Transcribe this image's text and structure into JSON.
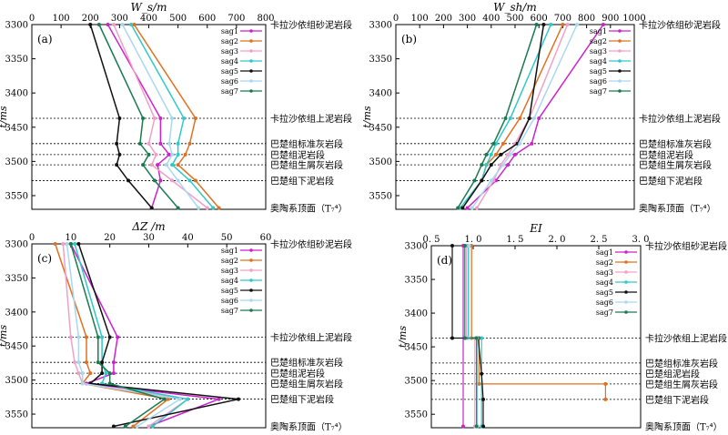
{
  "strata_common": {
    "labels": [
      "卡拉沙依组砂泥岩段",
      "卡拉沙依组上泥岩段",
      "巴楚组标准灰岩段",
      "巴楚组泥岩段",
      "巴楚组生屑灰岩段",
      "巴楚组下泥岩段",
      "奥陶系顶面（T₇⁴）"
    ],
    "depths": [
      3300,
      3437,
      3474,
      3490,
      3505,
      3528,
      3568
    ]
  },
  "series_colors": {
    "sag1": "#cc22cc",
    "sag2": "#e07020",
    "sag3": "#f0a0c8",
    "sag4": "#30c8c8",
    "sag5": "#111111",
    "sag6": "#a8d8f0",
    "sag7": "#1a7a50"
  },
  "chart_data": [
    {
      "id": "a",
      "type": "line",
      "panel_label": "(a)",
      "title": "W_s/m",
      "ylabel": "t/ms",
      "xlim": [
        0,
        800
      ],
      "x_ticks": [
        0,
        100,
        200,
        300,
        400,
        500,
        600,
        700,
        800
      ],
      "ylim": [
        3300,
        3570
      ],
      "y_ticks": [
        3300,
        3350,
        3400,
        3450,
        3500,
        3550
      ],
      "y_tick_labels": [
        "3300",
        "3350",
        "3400",
        "3450",
        "3500",
        "3550"
      ],
      "legend": [
        "sag1",
        "sag2",
        "sag3",
        "sag4",
        "sag5",
        "sag6",
        "sag7"
      ],
      "legend_position": "top-right",
      "dotted_lines": [
        3437,
        3474,
        3490,
        3505,
        3528
      ],
      "series": [
        {
          "name": "sag1",
          "points": [
            [
              260,
              3300
            ],
            [
              440,
              3437
            ],
            [
              440,
              3474
            ],
            [
              470,
              3490
            ],
            [
              430,
              3505
            ],
            [
              440,
              3528
            ],
            [
              410,
              3568
            ]
          ]
        },
        {
          "name": "sag2",
          "points": [
            [
              350,
              3300
            ],
            [
              560,
              3437
            ],
            [
              540,
              3474
            ],
            [
              525,
              3490
            ],
            [
              500,
              3505
            ],
            [
              560,
              3528
            ],
            [
              640,
              3568
            ]
          ]
        },
        {
          "name": "sag3",
          "points": [
            [
              280,
              3300
            ],
            [
              420,
              3437
            ],
            [
              400,
              3474
            ],
            [
              425,
              3490
            ],
            [
              410,
              3505
            ],
            [
              480,
              3528
            ],
            [
              600,
              3568
            ]
          ]
        },
        {
          "name": "sag4",
          "points": [
            [
              340,
              3300
            ],
            [
              520,
              3437
            ],
            [
              500,
              3474
            ],
            [
              500,
              3490
            ],
            [
              480,
              3505
            ],
            [
              540,
              3528
            ],
            [
              620,
              3568
            ]
          ]
        },
        {
          "name": "sag5",
          "points": [
            [
              200,
              3300
            ],
            [
              300,
              3437
            ],
            [
              290,
              3474
            ],
            [
              300,
              3490
            ],
            [
              290,
              3505
            ],
            [
              330,
              3528
            ],
            [
              410,
              3568
            ]
          ]
        },
        {
          "name": "sag6",
          "points": [
            [
              310,
              3300
            ],
            [
              480,
              3437
            ],
            [
              470,
              3474
            ],
            [
              480,
              3490
            ],
            [
              460,
              3505
            ],
            [
              500,
              3528
            ],
            [
              570,
              3568
            ]
          ]
        },
        {
          "name": "sag7",
          "points": [
            [
              230,
              3300
            ],
            [
              380,
              3437
            ],
            [
              370,
              3474
            ],
            [
              400,
              3490
            ],
            [
              380,
              3505
            ],
            [
              420,
              3528
            ],
            [
              500,
              3568
            ]
          ]
        }
      ]
    },
    {
      "id": "b",
      "type": "line",
      "panel_label": "(b)",
      "title": "W_sh/m",
      "ylabel": "t/ms",
      "xlim": [
        0,
        1000
      ],
      "x_ticks": [
        0,
        100,
        200,
        300,
        400,
        500,
        600,
        700,
        800,
        900,
        1000
      ],
      "ylim": [
        3300,
        3570
      ],
      "y_ticks": [
        3300,
        3350,
        3400,
        3450,
        3500,
        3550
      ],
      "y_tick_labels": [
        "3300",
        "3350",
        "3400",
        "3450",
        "3500",
        "3550"
      ],
      "legend": [
        "sag1",
        "sag2",
        "sag3",
        "sag4",
        "sag5",
        "sag6",
        "sag7"
      ],
      "legend_position": "top-right",
      "dotted_lines": [
        3437,
        3474,
        3490,
        3505,
        3528
      ],
      "series": [
        {
          "name": "sag1",
          "points": [
            [
              870,
              3300
            ],
            [
              600,
              3437
            ],
            [
              570,
              3474
            ],
            [
              500,
              3490
            ],
            [
              470,
              3505
            ],
            [
              420,
              3528
            ],
            [
              300,
              3568
            ]
          ]
        },
        {
          "name": "sag2",
          "points": [
            [
              700,
              3300
            ],
            [
              520,
              3437
            ],
            [
              450,
              3474
            ],
            [
              420,
              3490
            ],
            [
              380,
              3505
            ],
            [
              360,
              3528
            ],
            [
              280,
              3568
            ]
          ]
        },
        {
          "name": "sag3",
          "points": [
            [
              720,
              3300
            ],
            [
              560,
              3437
            ],
            [
              500,
              3474
            ],
            [
              470,
              3490
            ],
            [
              440,
              3505
            ],
            [
              410,
              3528
            ],
            [
              340,
              3568
            ]
          ]
        },
        {
          "name": "sag4",
          "points": [
            [
              650,
              3300
            ],
            [
              480,
              3437
            ],
            [
              420,
              3474
            ],
            [
              400,
              3490
            ],
            [
              380,
              3505
            ],
            [
              360,
              3528
            ],
            [
              270,
              3568
            ]
          ]
        },
        {
          "name": "sag5",
          "points": [
            [
              620,
              3300
            ],
            [
              560,
              3437
            ],
            [
              510,
              3474
            ],
            [
              440,
              3490
            ],
            [
              400,
              3505
            ],
            [
              360,
              3528
            ],
            [
              280,
              3568
            ]
          ]
        },
        {
          "name": "sag6",
          "points": [
            [
              760,
              3300
            ],
            [
              580,
              3437
            ],
            [
              520,
              3474
            ],
            [
              480,
              3490
            ],
            [
              450,
              3505
            ],
            [
              400,
              3528
            ],
            [
              320,
              3568
            ]
          ]
        },
        {
          "name": "sag7",
          "points": [
            [
              590,
              3300
            ],
            [
              460,
              3437
            ],
            [
              410,
              3474
            ],
            [
              380,
              3490
            ],
            [
              360,
              3505
            ],
            [
              330,
              3528
            ],
            [
              260,
              3568
            ]
          ]
        }
      ]
    },
    {
      "id": "c",
      "type": "line",
      "panel_label": "(c)",
      "title": "ΔZ /m",
      "ylabel": "t/ms",
      "xlim": [
        0,
        60
      ],
      "x_ticks": [
        0,
        10,
        20,
        30,
        40,
        50,
        60
      ],
      "ylim": [
        3300,
        3570
      ],
      "y_ticks": [
        3300,
        3350,
        3400,
        3450,
        3500,
        3550
      ],
      "y_tick_labels": [
        "3300",
        "3350",
        "3400",
        "3450",
        "3500",
        "3550"
      ],
      "legend": [
        "sag1",
        "sag2",
        "sag3",
        "sag4",
        "sag5",
        "sag6",
        "sag7"
      ],
      "legend_position": "top-right",
      "dotted_lines": [
        3437,
        3474,
        3490,
        3505,
        3528
      ],
      "series": [
        {
          "name": "sag1",
          "points": [
            [
              10,
              3300
            ],
            [
              22,
              3437
            ],
            [
              21,
              3474
            ],
            [
              21,
              3490
            ],
            [
              14,
              3505
            ],
            [
              48,
              3528
            ],
            [
              30,
              3568
            ]
          ]
        },
        {
          "name": "sag2",
          "points": [
            [
              6,
              3300
            ],
            [
              14,
              3437
            ],
            [
              14,
              3474
            ],
            [
              15,
              3490
            ],
            [
              13,
              3505
            ],
            [
              35,
              3528
            ],
            [
              26,
              3568
            ]
          ]
        },
        {
          "name": "sag3",
          "points": [
            [
              8,
              3300
            ],
            [
              10,
              3437
            ],
            [
              11,
              3474
            ],
            [
              12,
              3490
            ],
            [
              13,
              3505
            ],
            [
              40,
              3528
            ],
            [
              30,
              3568
            ]
          ]
        },
        {
          "name": "sag4",
          "points": [
            [
              11,
              3300
            ],
            [
              18,
              3437
            ],
            [
              18,
              3474
            ],
            [
              19,
              3490
            ],
            [
              18,
              3505
            ],
            [
              40,
              3528
            ],
            [
              31,
              3568
            ]
          ]
        },
        {
          "name": "sag5",
          "points": [
            [
              12,
              3300
            ],
            [
              20,
              3437
            ],
            [
              18,
              3474
            ],
            [
              18,
              3490
            ],
            [
              15,
              3505
            ],
            [
              53,
              3528
            ],
            [
              21,
              3568
            ]
          ]
        },
        {
          "name": "sag6",
          "points": [
            [
              9,
              3300
            ],
            [
              12,
              3437
            ],
            [
              12,
              3474
            ],
            [
              13,
              3490
            ],
            [
              13,
              3505
            ],
            [
              38,
              3528
            ],
            [
              27,
              3568
            ]
          ]
        },
        {
          "name": "sag7",
          "points": [
            [
              10,
              3300
            ],
            [
              17,
              3437
            ],
            [
              17,
              3474
            ],
            [
              20,
              3490
            ],
            [
              20,
              3505
            ],
            [
              34,
              3528
            ],
            [
              24,
              3568
            ]
          ]
        }
      ]
    },
    {
      "id": "d",
      "type": "line",
      "panel_label": "(d)",
      "title": "EI",
      "ylabel": "t/ms",
      "xlim": [
        0.5,
        3.0
      ],
      "x_ticks": [
        0.5,
        1.0,
        1.5,
        2.0,
        2.5,
        3.0
      ],
      "x_tick_labels": [
        "0. 5",
        "1. 0",
        "1. 5",
        "2. 0",
        "2. 5",
        "3. 0"
      ],
      "ylim": [
        3300,
        3570
      ],
      "y_ticks": [
        3300,
        3350,
        3400,
        3450,
        3500,
        3550
      ],
      "y_tick_labels": [
        "3300",
        "3350",
        "3400",
        "3450",
        "3500",
        "3550"
      ],
      "legend": [
        "sag1",
        "sag2",
        "sag3",
        "sag4",
        "sag5",
        "sag6",
        "sag7"
      ],
      "legend_position": "top-right",
      "dotted_lines": [
        3437,
        3474,
        3490,
        3505,
        3528
      ],
      "series": [
        {
          "name": "sag1",
          "points": [
            [
              0.88,
              3300
            ],
            [
              0.88,
              3568
            ]
          ]
        },
        {
          "name": "sag2",
          "points": [
            [
              0.98,
              3300
            ],
            [
              0.98,
              3437
            ],
            [
              1.07,
              3437
            ],
            [
              1.07,
              3505
            ],
            [
              2.58,
              3505
            ],
            [
              2.58,
              3528
            ]
          ]
        },
        {
          "name": "sag3",
          "points": [
            [
              0.92,
              3300
            ],
            [
              0.92,
              3437
            ],
            [
              1.02,
              3437
            ],
            [
              1.02,
              3568
            ]
          ]
        },
        {
          "name": "sag4",
          "points": [
            [
              0.94,
              3300
            ],
            [
              0.94,
              3437
            ],
            [
              1.1,
              3437
            ],
            [
              1.1,
              3568
            ]
          ]
        },
        {
          "name": "sag5",
          "points": [
            [
              0.75,
              3300
            ],
            [
              0.75,
              3437
            ],
            [
              1.06,
              3437
            ],
            [
              1.1,
              3490
            ],
            [
              1.12,
              3528
            ],
            [
              1.12,
              3568
            ]
          ]
        },
        {
          "name": "sag6",
          "points": [
            [
              0.95,
              3300
            ],
            [
              0.95,
              3437
            ],
            [
              1.05,
              3437
            ],
            [
              1.05,
              3568
            ]
          ]
        },
        {
          "name": "sag7",
          "points": [
            [
              0.9,
              3300
            ],
            [
              0.9,
              3437
            ],
            [
              1.04,
              3437
            ],
            [
              1.04,
              3568
            ]
          ]
        }
      ]
    }
  ]
}
